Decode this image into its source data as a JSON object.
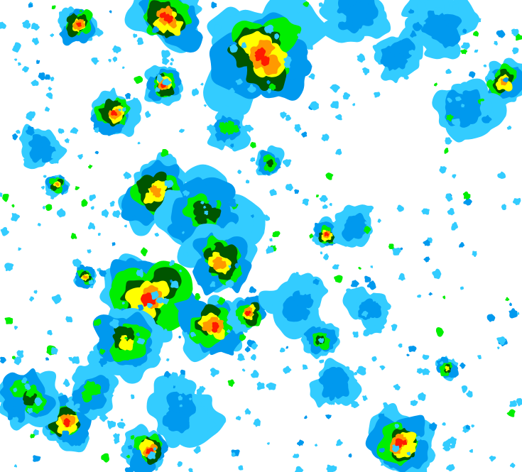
{
  "map": {
    "type": "weather-radar-reflectivity",
    "background": "#ffffff",
    "intensity_colors": [
      "#33ccff",
      "#0099ee",
      "#00ee00",
      "#005500",
      "#ffff00",
      "#ff9900",
      "#ff1a00"
    ]
  }
}
